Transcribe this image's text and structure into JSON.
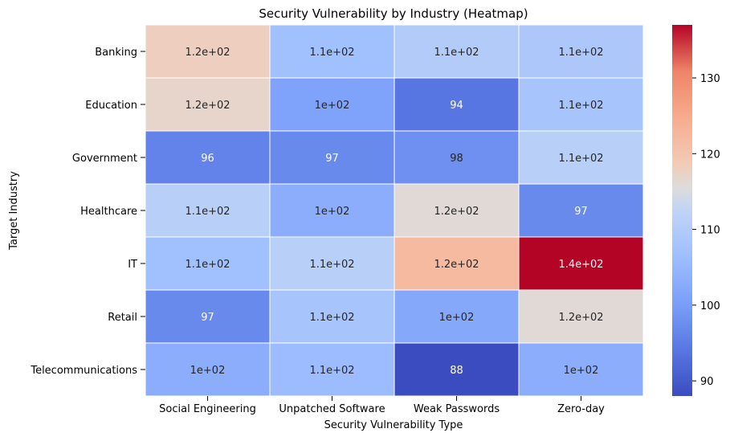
{
  "chart_data": {
    "type": "heatmap",
    "title": "Security Vulnerability by Industry (Heatmap)",
    "xlabel": "Security Vulnerability Type",
    "ylabel": "Target Industry",
    "x_categories": [
      "Social Engineering",
      "Unpatched Software",
      "Weak Passwords",
      "Zero-day"
    ],
    "y_categories": [
      "Banking",
      "Education",
      "Government",
      "Healthcare",
      "IT",
      "Retail",
      "Telecommunications"
    ],
    "values": [
      [
        118,
        107,
        110,
        109
      ],
      [
        117,
        101,
        94,
        108
      ],
      [
        96,
        97,
        98,
        111
      ],
      [
        111,
        103,
        116,
        97
      ],
      [
        107,
        111,
        122,
        137
      ],
      [
        97,
        108,
        102,
        116
      ],
      [
        103,
        106,
        88,
        103
      ]
    ],
    "annotations": [
      [
        "1.2e+02",
        "1.1e+02",
        "1.1e+02",
        "1.1e+02"
      ],
      [
        "1.2e+02",
        "1e+02",
        "94",
        "1.1e+02"
      ],
      [
        "96",
        "97",
        "98",
        "1.1e+02"
      ],
      [
        "1.1e+02",
        "1e+02",
        "1.2e+02",
        "97"
      ],
      [
        "1.1e+02",
        "1.1e+02",
        "1.2e+02",
        "1.4e+02"
      ],
      [
        "97",
        "1.1e+02",
        "1e+02",
        "1.2e+02"
      ],
      [
        "1e+02",
        "1.1e+02",
        "88",
        "1e+02"
      ]
    ],
    "colormap": "coolwarm",
    "value_range": [
      88,
      137
    ],
    "colorbar_ticks": [
      90,
      100,
      110,
      120,
      130
    ],
    "grid": false,
    "colorbar_position": "right"
  }
}
